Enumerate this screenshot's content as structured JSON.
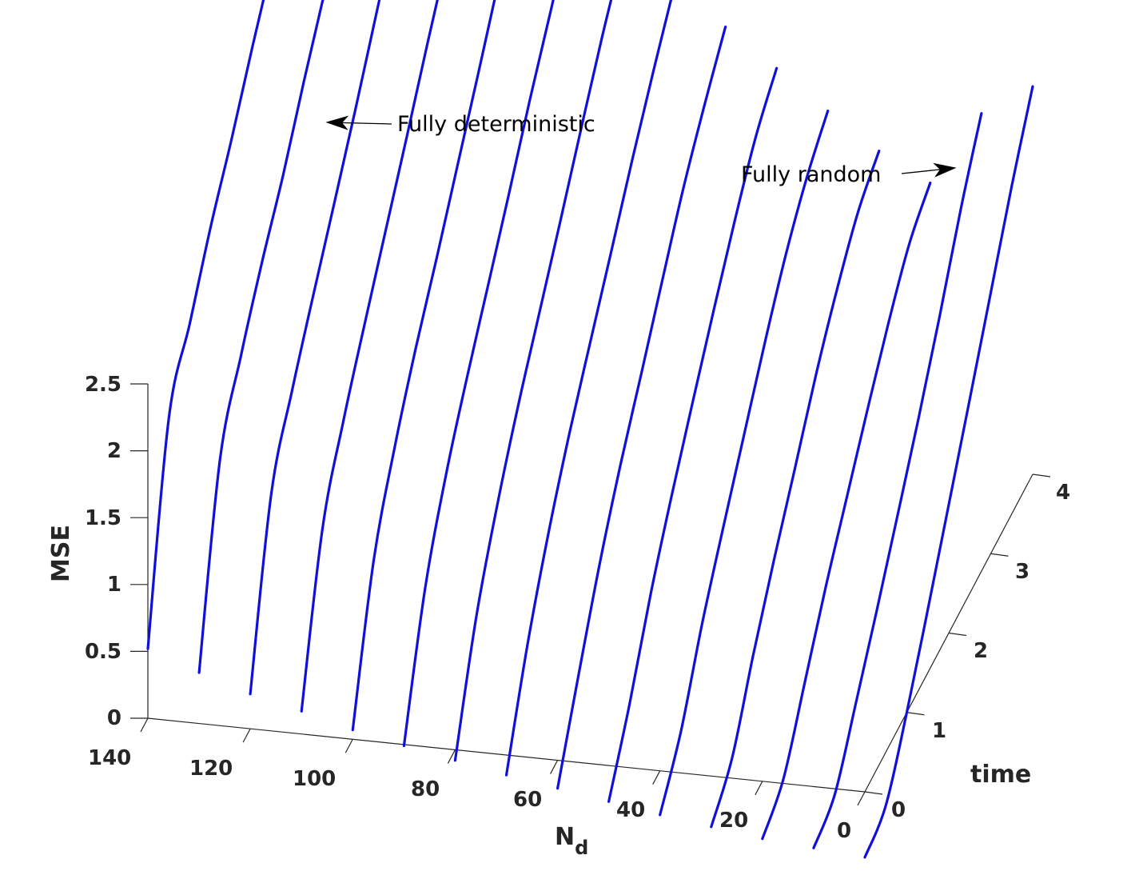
{
  "chart_data": {
    "type": "line",
    "projection": "3d",
    "xlabel": "N",
    "xlabel_subscript": "d",
    "ylabel": "time",
    "zlabel": "MSE",
    "xlim": [
      0,
      140
    ],
    "ylim": [
      0,
      4
    ],
    "zlim": [
      0,
      2.5
    ],
    "x_ticks": [
      "140",
      "120",
      "100",
      "80",
      "60",
      "40",
      "20",
      "0"
    ],
    "y_ticks": [
      "0",
      "1",
      "2",
      "3",
      "4"
    ],
    "z_ticks": [
      "0",
      "0.5",
      "1",
      "1.5",
      "2",
      "2.5"
    ],
    "grid": false,
    "line_color": "#1010d8",
    "annotations": [
      {
        "text": "Fully deterministic",
        "arrow": "left"
      },
      {
        "text": "Fully random",
        "arrow": "right"
      }
    ],
    "time": [
      0,
      0.5,
      1,
      1.5,
      2,
      2.5,
      3,
      3.5,
      4
    ],
    "series": [
      {
        "x": 140,
        "values": [
          0.52,
          1.95,
          2.36,
          2.79,
          3.15,
          3.55,
          3.92,
          4.33,
          4.72
        ]
      },
      {
        "x": 130,
        "values": [
          0.38,
          1.68,
          2.16,
          2.56,
          2.91,
          3.32,
          3.7,
          4.11,
          4.48
        ]
      },
      {
        "x": 120,
        "values": [
          0.26,
          1.46,
          1.94,
          2.35,
          2.74,
          3.14,
          3.56,
          3.98,
          4.41
        ]
      },
      {
        "x": 110,
        "values": [
          0.17,
          1.24,
          1.75,
          2.17,
          2.57,
          2.97,
          3.38,
          3.77,
          4.15
        ]
      },
      {
        "x": 100,
        "values": [
          0.07,
          1.04,
          1.59,
          2.03,
          2.41,
          2.81,
          3.21,
          3.62,
          4.02
        ]
      },
      {
        "x": 90,
        "values": [
          -0.01,
          0.86,
          1.42,
          1.85,
          2.24,
          2.63,
          3.04,
          3.41,
          3.8
        ]
      },
      {
        "x": 80,
        "values": [
          -0.08,
          0.69,
          1.23,
          1.68,
          2.07,
          2.46,
          2.86,
          3.25,
          3.59
        ]
      },
      {
        "x": 70,
        "values": [
          -0.15,
          0.52,
          1.06,
          1.51,
          1.9,
          2.28,
          2.67,
          3.03,
          3.37
        ]
      },
      {
        "x": 60,
        "values": [
          -0.21,
          0.34,
          0.87,
          1.32,
          1.71,
          2.11,
          2.5,
          2.82,
          3.11
        ]
      },
      {
        "x": 50,
        "values": [
          -0.27,
          0.17,
          0.69,
          1.13,
          1.53,
          1.92,
          2.29,
          2.62,
          2.84
        ]
      },
      {
        "x": 40,
        "values": [
          -0.33,
          0.0,
          0.5,
          0.92,
          1.32,
          1.72,
          2.08,
          2.36,
          2.56
        ]
      },
      {
        "x": 30,
        "values": [
          -0.38,
          -0.16,
          0.31,
          0.73,
          1.12,
          1.52,
          1.86,
          2.14,
          2.3
        ]
      },
      {
        "x": 20,
        "values": [
          -0.43,
          -0.28,
          0.13,
          0.55,
          0.92,
          1.29,
          1.64,
          1.94,
          2.1
        ]
      },
      {
        "x": 10,
        "values": [
          -0.46,
          -0.36,
          0.02,
          0.42,
          0.84,
          1.27,
          1.73,
          2.23,
          2.66
        ]
      },
      {
        "x": 0,
        "values": [
          -0.49,
          -0.4,
          0.0,
          0.47,
          0.96,
          1.45,
          1.95,
          2.45,
          2.9
        ]
      }
    ]
  }
}
